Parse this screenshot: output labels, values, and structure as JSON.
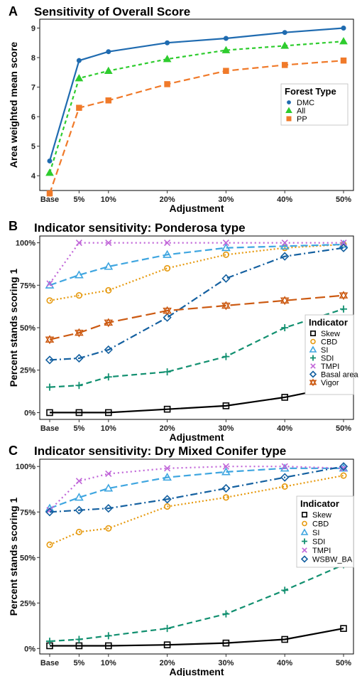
{
  "chart_data": [
    {
      "panel_label": "A",
      "type": "line",
      "title": "Sensitivity of Overall Score",
      "xlabel": "Adjustment",
      "ylabel": "Area weighted mean score",
      "categories": [
        "Base",
        "5%",
        "10%",
        "20%",
        "30%",
        "40%",
        "50%"
      ],
      "x": [
        0,
        5,
        10,
        20,
        30,
        40,
        50
      ],
      "ylim": [
        3.5,
        9.3
      ],
      "yticks": [
        4,
        5,
        6,
        7,
        8,
        9
      ],
      "ytick_labels": [
        "4",
        "5",
        "6",
        "7",
        "8",
        "9"
      ],
      "legend": {
        "title": "Forest Type",
        "position": "right"
      },
      "series": [
        {
          "name": "DMC",
          "color": "#1f6bb0",
          "dash": "",
          "marker": "circle",
          "values": [
            4.5,
            7.9,
            8.2,
            8.5,
            8.65,
            8.85,
            9.0
          ]
        },
        {
          "name": "All",
          "color": "#2ecc2e",
          "dash": "5,4",
          "marker": "triangle",
          "values": [
            4.1,
            7.3,
            7.55,
            7.95,
            8.25,
            8.4,
            8.55
          ]
        },
        {
          "name": "PP",
          "color": "#f07a2a",
          "dash": "9,5",
          "marker": "square",
          "values": [
            3.4,
            6.3,
            6.55,
            7.1,
            7.55,
            7.75,
            7.9
          ]
        }
      ]
    },
    {
      "panel_label": "B",
      "type": "line",
      "title": "Indicator sensitivity: Ponderosa type",
      "xlabel": "Adjustment",
      "ylabel": "Percent stands scoring 1",
      "categories": [
        "Base",
        "5%",
        "10%",
        "20%",
        "30%",
        "40%",
        "50%"
      ],
      "x": [
        0,
        5,
        10,
        20,
        30,
        40,
        50
      ],
      "ylim": [
        -4,
        104
      ],
      "yticks": [
        0,
        25,
        50,
        75,
        100
      ],
      "ytick_labels": [
        "0%",
        "25%",
        "50%",
        "75%",
        "100%"
      ],
      "legend": {
        "title": "Indicator",
        "position": "right"
      },
      "series": [
        {
          "name": "Skew",
          "color": "#000000",
          "dash": "",
          "marker": "square-open",
          "values": [
            0,
            0,
            0,
            2,
            4,
            9,
            16
          ]
        },
        {
          "name": "CBD",
          "color": "#e69a10",
          "dash": "2,3",
          "marker": "circle-open",
          "values": [
            66,
            69,
            72,
            85,
            93,
            97,
            99
          ]
        },
        {
          "name": "SI",
          "color": "#3fa6e0",
          "dash": "10,5",
          "marker": "triangle-open",
          "values": [
            75,
            81,
            86,
            93,
            97,
            98,
            99
          ]
        },
        {
          "name": "SDI",
          "color": "#129070",
          "dash": "8,5",
          "marker": "plus",
          "values": [
            15,
            16,
            21,
            24,
            33,
            50,
            61
          ]
        },
        {
          "name": "TMPI",
          "color": "#c065d8",
          "dash": "2,4",
          "marker": "x",
          "values": [
            76,
            100,
            100,
            100,
            100,
            100,
            100
          ]
        },
        {
          "name": "Basal area",
          "color": "#1460a0",
          "dash": "10,4,2,4",
          "marker": "diamond-open",
          "values": [
            31,
            32,
            37,
            56,
            79,
            92,
            97
          ]
        },
        {
          "name": "Vigor",
          "color": "#cc5a12",
          "dash": "14,6",
          "marker": "star-open",
          "values": [
            43,
            47,
            53,
            60,
            63,
            66,
            69
          ]
        }
      ]
    },
    {
      "panel_label": "C",
      "type": "line",
      "title": "Indicator sensitivity: Dry Mixed Conifer type",
      "xlabel": "Adjustment",
      "ylabel": "Percent stands scoring 1",
      "categories": [
        "Base",
        "5%",
        "10%",
        "20%",
        "30%",
        "40%",
        "50%"
      ],
      "x": [
        0,
        5,
        10,
        20,
        30,
        40,
        50
      ],
      "ylim": [
        -3,
        104
      ],
      "yticks": [
        0,
        25,
        50,
        75,
        100
      ],
      "ytick_labels": [
        "0%",
        "25%",
        "50%",
        "75%",
        "100%"
      ],
      "legend": {
        "title": "Indicator",
        "position": "right"
      },
      "series": [
        {
          "name": "Skew",
          "color": "#000000",
          "dash": "",
          "marker": "square-open",
          "values": [
            1.5,
            1.5,
            1.5,
            2,
            3,
            5,
            11
          ]
        },
        {
          "name": "CBD",
          "color": "#e69a10",
          "dash": "2,3",
          "marker": "circle-open",
          "values": [
            57,
            64,
            66,
            78,
            83,
            89,
            95
          ]
        },
        {
          "name": "SI",
          "color": "#3fa6e0",
          "dash": "10,5",
          "marker": "triangle-open",
          "values": [
            77,
            83,
            88,
            94,
            97,
            99,
            99
          ]
        },
        {
          "name": "SDI",
          "color": "#129070",
          "dash": "8,5",
          "marker": "plus",
          "values": [
            4,
            5,
            7,
            11,
            19,
            32,
            46
          ]
        },
        {
          "name": "TMPI",
          "color": "#c065d8",
          "dash": "2,4",
          "marker": "x",
          "values": [
            76,
            92,
            96,
            99,
            100,
            100,
            99
          ]
        },
        {
          "name": "WSBW_BA",
          "color": "#1460a0",
          "dash": "10,4,2,4",
          "marker": "diamond-open",
          "values": [
            75,
            76,
            77,
            82,
            88,
            94,
            100
          ]
        }
      ]
    }
  ]
}
